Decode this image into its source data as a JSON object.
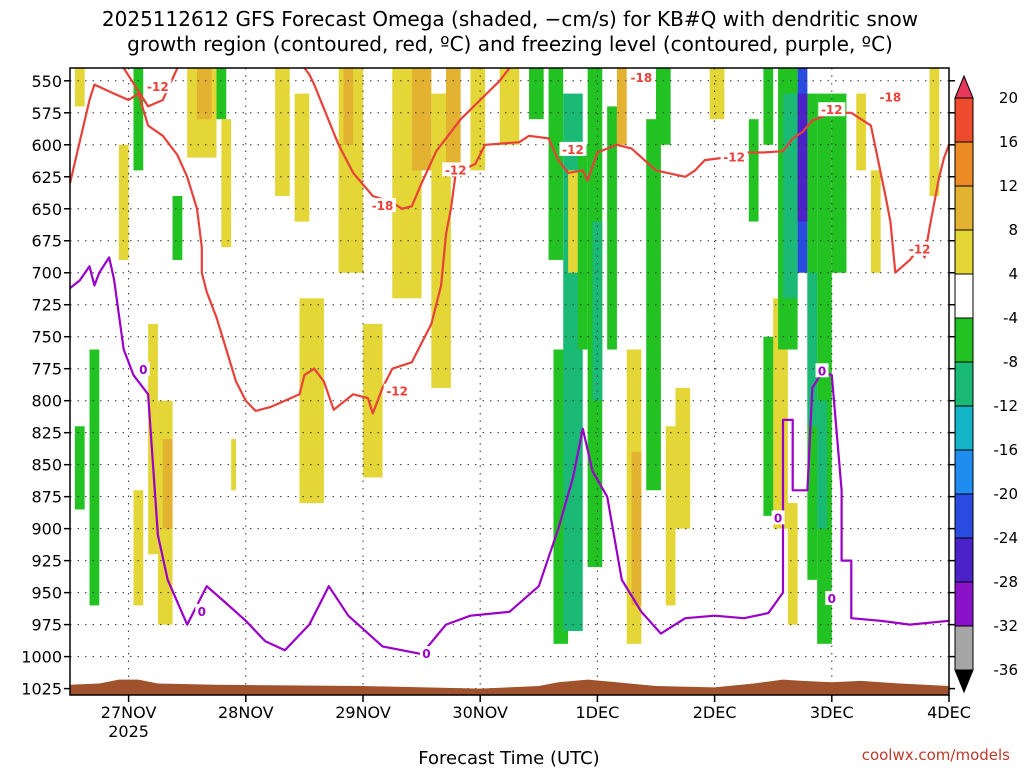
{
  "chart_data": {
    "type": "heatmap",
    "title_line1": "2025112612 GFS Forecast Omega (shaded, −cm/s) for KB#Q with dendritic snow",
    "title_line2": "growth region (contoured, red, ºC) and freezing level (contoured, purple, ºC)",
    "xlabel": "Forecast Time (UTC)",
    "credit": "coolwx.com/models",
    "x_ticks": [
      {
        "t": 12,
        "label": "27NOV",
        "sub": "2025"
      },
      {
        "t": 36,
        "label": "28NOV",
        "sub": ""
      },
      {
        "t": 60,
        "label": "29NOV",
        "sub": ""
      },
      {
        "t": 84,
        "label": "30NOV",
        "sub": ""
      },
      {
        "t": 108,
        "label": "1DEC",
        "sub": ""
      },
      {
        "t": 132,
        "label": "2DEC",
        "sub": ""
      },
      {
        "t": 156,
        "label": "3DEC",
        "sub": ""
      },
      {
        "t": 180,
        "label": "4DEC",
        "sub": ""
      }
    ],
    "y_ticks": [
      550,
      575,
      600,
      625,
      650,
      675,
      700,
      725,
      750,
      775,
      800,
      825,
      850,
      875,
      900,
      925,
      950,
      975,
      1000,
      1025
    ],
    "x_range_hours": [
      0,
      180
    ],
    "y_range_hpa": [
      540,
      1030
    ],
    "colorbar": {
      "levels": [
        20,
        16,
        12,
        8,
        4,
        -4,
        -8,
        -12,
        -16,
        -20,
        -24,
        -28,
        -32,
        -36
      ],
      "colors": [
        "#e8375a",
        "#ee4a2d",
        "#ec8a23",
        "#e2b230",
        "#e3d636",
        "#ffffff",
        "#21c221",
        "#1ab976",
        "#14b4c8",
        "#1f8cf0",
        "#2a4be0",
        "#4a22c8",
        "#8a12c8",
        "#a6a6a6",
        "#000000"
      ]
    },
    "series": [
      {
        "name": "freezing level 0°C",
        "color": "#9a00c8",
        "points": [
          [
            0,
            712
          ],
          [
            2,
            706
          ],
          [
            4,
            695
          ],
          [
            5,
            710
          ],
          [
            6,
            700
          ],
          [
            8,
            688
          ],
          [
            9,
            705
          ],
          [
            11,
            760
          ],
          [
            13,
            780
          ],
          [
            16,
            795
          ],
          [
            17,
            850
          ],
          [
            18,
            905
          ],
          [
            20,
            940
          ],
          [
            24,
            975
          ],
          [
            28,
            945
          ],
          [
            31,
            955
          ],
          [
            36,
            972
          ],
          [
            40,
            988
          ],
          [
            44,
            995
          ],
          [
            49,
            975
          ],
          [
            53,
            945
          ],
          [
            57,
            968
          ],
          [
            64,
            992
          ],
          [
            72,
            998
          ],
          [
            77,
            975
          ],
          [
            82,
            968
          ],
          [
            90,
            965
          ],
          [
            96,
            945
          ],
          [
            100,
            900
          ],
          [
            103,
            860
          ],
          [
            105,
            822
          ],
          [
            107,
            855
          ],
          [
            110,
            875
          ],
          [
            113,
            940
          ],
          [
            117,
            965
          ],
          [
            121,
            982
          ],
          [
            126,
            970
          ],
          [
            132,
            968
          ],
          [
            138,
            970
          ],
          [
            143,
            966
          ],
          [
            146,
            950
          ],
          [
            146,
            815
          ],
          [
            148,
            815
          ],
          [
            148,
            870
          ],
          [
            151,
            870
          ],
          [
            152,
            790
          ],
          [
            154,
            778
          ],
          [
            156,
            780
          ],
          [
            158,
            870
          ],
          [
            158,
            925
          ],
          [
            160,
            925
          ],
          [
            160,
            970
          ],
          [
            166,
            972
          ],
          [
            172,
            975
          ],
          [
            180,
            972
          ]
        ]
      },
      {
        "name": "-12°C lower contour",
        "color": "#e8413a",
        "points": [
          [
            0,
            630
          ],
          [
            4,
            565
          ],
          [
            5,
            553
          ],
          [
            9,
            560
          ],
          [
            12,
            565
          ],
          [
            14,
            560
          ],
          [
            16,
            585
          ],
          [
            19,
            593
          ],
          [
            22,
            608
          ],
          [
            24,
            625
          ],
          [
            26,
            650
          ],
          [
            27,
            680
          ],
          [
            27,
            700
          ],
          [
            28,
            715
          ],
          [
            30,
            735
          ],
          [
            32,
            760
          ],
          [
            34,
            785
          ],
          [
            36,
            800
          ],
          [
            38,
            808
          ],
          [
            41,
            805
          ],
          [
            44,
            800
          ],
          [
            47,
            795
          ],
          [
            48,
            780
          ],
          [
            50,
            775
          ],
          [
            52,
            785
          ],
          [
            54,
            807
          ],
          [
            58,
            795
          ],
          [
            61,
            798
          ],
          [
            62,
            810
          ],
          [
            64,
            790
          ],
          [
            66,
            775
          ],
          [
            70,
            770
          ],
          [
            74,
            740
          ],
          [
            76,
            710
          ],
          [
            77,
            670
          ],
          [
            78,
            650
          ],
          [
            79,
            622
          ],
          [
            83,
            615
          ],
          [
            85,
            600
          ],
          [
            92,
            598
          ],
          [
            94,
            593
          ],
          [
            98,
            595
          ],
          [
            100,
            612
          ],
          [
            102,
            622
          ],
          [
            105,
            620
          ],
          [
            106,
            628
          ],
          [
            108,
            606
          ],
          [
            112,
            600
          ],
          [
            115,
            603
          ],
          [
            120,
            620
          ],
          [
            126,
            625
          ],
          [
            128,
            620
          ],
          [
            130,
            612
          ],
          [
            134,
            610
          ],
          [
            138,
            606
          ],
          [
            142,
            606
          ],
          [
            146,
            605
          ],
          [
            148,
            595
          ],
          [
            150,
            590
          ],
          [
            152,
            581
          ],
          [
            156,
            575
          ],
          [
            160,
            575
          ],
          [
            164,
            585
          ],
          [
            167,
            640
          ],
          [
            168,
            660
          ],
          [
            169,
            700
          ],
          [
            172,
            690
          ],
          [
            174,
            680
          ],
          [
            175,
            688
          ],
          [
            176,
            665
          ],
          [
            178,
            625
          ],
          [
            179,
            610
          ],
          [
            180,
            600
          ]
        ]
      },
      {
        "name": "-12°C upper contour",
        "color": "#e8413a",
        "points": [
          [
            11,
            540
          ],
          [
            13,
            552
          ],
          [
            16,
            570
          ],
          [
            19,
            565
          ],
          [
            22,
            540
          ]
        ]
      },
      {
        "name": "-18°C contour",
        "color": "#e8413a",
        "points": [
          [
            48,
            540
          ],
          [
            49,
            545
          ],
          [
            50,
            553
          ],
          [
            55,
            600
          ],
          [
            58,
            622
          ],
          [
            62,
            640
          ],
          [
            66,
            645
          ],
          [
            68,
            650
          ],
          [
            70,
            648
          ],
          [
            72,
            630
          ],
          [
            75,
            605
          ],
          [
            80,
            580
          ],
          [
            84,
            565
          ],
          [
            88,
            550
          ],
          [
            90,
            540
          ]
        ]
      }
    ],
    "contour_labels": [
      {
        "text": "-12",
        "t": 18,
        "p": 555,
        "class": "red"
      },
      {
        "text": "-18",
        "t": 64,
        "p": 648,
        "class": "red"
      },
      {
        "text": "-12",
        "t": 67,
        "p": 793,
        "class": "red"
      },
      {
        "text": "-12",
        "t": 79,
        "p": 620,
        "class": "red"
      },
      {
        "text": "-12",
        "t": 103,
        "p": 604,
        "class": "red"
      },
      {
        "text": "-18",
        "t": 117,
        "p": 548,
        "class": "red"
      },
      {
        "text": "-12",
        "t": 136,
        "p": 610,
        "class": "red"
      },
      {
        "text": "-12",
        "t": 156,
        "p": 573,
        "class": "red"
      },
      {
        "text": "-18",
        "t": 168,
        "p": 563,
        "class": "red"
      },
      {
        "text": "-12",
        "t": 174,
        "p": 682,
        "class": "red"
      },
      {
        "text": "0",
        "t": 15,
        "p": 776,
        "class": "purple"
      },
      {
        "text": "0",
        "t": 27,
        "p": 965,
        "class": "purple"
      },
      {
        "text": "0",
        "t": 73,
        "p": 998,
        "class": "purple"
      },
      {
        "text": "0",
        "t": 145,
        "p": 892,
        "class": "purple"
      },
      {
        "text": "0",
        "t": 154,
        "p": 777,
        "class": "purple"
      },
      {
        "text": "0",
        "t": 156,
        "p": 955,
        "class": "purple"
      }
    ],
    "omega_regions": [
      {
        "t0": 1,
        "t1": 3,
        "p0": 540,
        "p1": 570,
        "level": 4
      },
      {
        "t0": 1,
        "t1": 3,
        "p0": 820,
        "p1": 885,
        "level": -8
      },
      {
        "t0": 4,
        "t1": 6,
        "p0": 760,
        "p1": 960,
        "level": -8
      },
      {
        "t0": 10,
        "t1": 12,
        "p0": 600,
        "p1": 690,
        "level": 4
      },
      {
        "t0": 13,
        "t1": 15,
        "p0": 540,
        "p1": 620,
        "level": -8
      },
      {
        "t0": 13,
        "t1": 15,
        "p0": 870,
        "p1": 960,
        "level": 4
      },
      {
        "t0": 16,
        "t1": 18,
        "p0": 740,
        "p1": 920,
        "level": 4
      },
      {
        "t0": 18,
        "t1": 21,
        "p0": 800,
        "p1": 975,
        "level": 4
      },
      {
        "t0": 19,
        "t1": 21,
        "p0": 830,
        "p1": 900,
        "level": 8
      },
      {
        "t0": 21,
        "t1": 23,
        "p0": 640,
        "p1": 690,
        "level": -8
      },
      {
        "t0": 24,
        "t1": 30,
        "p0": 540,
        "p1": 610,
        "level": 4
      },
      {
        "t0": 26,
        "t1": 29,
        "p0": 540,
        "p1": 580,
        "level": 8
      },
      {
        "t0": 30,
        "t1": 32,
        "p0": 540,
        "p1": 580,
        "level": -8
      },
      {
        "t0": 31,
        "t1": 33,
        "p0": 580,
        "p1": 680,
        "level": 4
      },
      {
        "t0": 33,
        "t1": 34,
        "p0": 830,
        "p1": 870,
        "level": 4
      },
      {
        "t0": 42,
        "t1": 45,
        "p0": 540,
        "p1": 640,
        "level": 4
      },
      {
        "t0": 46,
        "t1": 49,
        "p0": 560,
        "p1": 660,
        "level": 4
      },
      {
        "t0": 47,
        "t1": 52,
        "p0": 720,
        "p1": 880,
        "level": 4
      },
      {
        "t0": 55,
        "t1": 60,
        "p0": 540,
        "p1": 700,
        "level": 4
      },
      {
        "t0": 56,
        "t1": 58,
        "p0": 540,
        "p1": 600,
        "level": 8
      },
      {
        "t0": 60,
        "t1": 64,
        "p0": 740,
        "p1": 860,
        "level": 4
      },
      {
        "t0": 66,
        "t1": 72,
        "p0": 540,
        "p1": 720,
        "level": 4
      },
      {
        "t0": 70,
        "t1": 74,
        "p0": 540,
        "p1": 620,
        "level": 8
      },
      {
        "t0": 74,
        "t1": 78,
        "p0": 560,
        "p1": 790,
        "level": 4
      },
      {
        "t0": 77,
        "t1": 80,
        "p0": 540,
        "p1": 620,
        "level": 8
      },
      {
        "t0": 82,
        "t1": 85,
        "p0": 540,
        "p1": 620,
        "level": 4
      },
      {
        "t0": 88,
        "t1": 92,
        "p0": 540,
        "p1": 600,
        "level": 4
      },
      {
        "t0": 94,
        "t1": 97,
        "p0": 540,
        "p1": 580,
        "level": -8
      },
      {
        "t0": 98,
        "t1": 101,
        "p0": 540,
        "p1": 690,
        "level": -8
      },
      {
        "t0": 99,
        "t1": 102,
        "p0": 760,
        "p1": 990,
        "level": -8
      },
      {
        "t0": 101,
        "t1": 105,
        "p0": 560,
        "p1": 980,
        "level": -12
      },
      {
        "t0": 102,
        "t1": 104,
        "p0": 620,
        "p1": 700,
        "level": 4
      },
      {
        "t0": 104,
        "t1": 106,
        "p0": 600,
        "p1": 760,
        "level": -8
      },
      {
        "t0": 106,
        "t1": 109,
        "p0": 540,
        "p1": 930,
        "level": -8
      },
      {
        "t0": 107,
        "t1": 109,
        "p0": 660,
        "p1": 800,
        "level": -12
      },
      {
        "t0": 110,
        "t1": 112,
        "p0": 570,
        "p1": 760,
        "level": -8
      },
      {
        "t0": 112,
        "t1": 114,
        "p0": 540,
        "p1": 600,
        "level": 8
      },
      {
        "t0": 114,
        "t1": 117,
        "p0": 760,
        "p1": 990,
        "level": 4
      },
      {
        "t0": 115,
        "t1": 117,
        "p0": 840,
        "p1": 960,
        "level": 8
      },
      {
        "t0": 118,
        "t1": 121,
        "p0": 580,
        "p1": 870,
        "level": -8
      },
      {
        "t0": 120,
        "t1": 123,
        "p0": 540,
        "p1": 600,
        "level": -8
      },
      {
        "t0": 122,
        "t1": 124,
        "p0": 820,
        "p1": 960,
        "level": 4
      },
      {
        "t0": 124,
        "t1": 127,
        "p0": 790,
        "p1": 900,
        "level": 4
      },
      {
        "t0": 131,
        "t1": 134,
        "p0": 540,
        "p1": 580,
        "level": 4
      },
      {
        "t0": 139,
        "t1": 141,
        "p0": 580,
        "p1": 660,
        "level": -8
      },
      {
        "t0": 142,
        "t1": 144,
        "p0": 540,
        "p1": 600,
        "level": -8
      },
      {
        "t0": 142,
        "t1": 145,
        "p0": 750,
        "p1": 890,
        "level": -8
      },
      {
        "t0": 144,
        "t1": 147,
        "p0": 720,
        "p1": 900,
        "level": 4
      },
      {
        "t0": 145,
        "t1": 149,
        "p0": 540,
        "p1": 760,
        "level": -8
      },
      {
        "t0": 146,
        "t1": 149,
        "p0": 560,
        "p1": 720,
        "level": -12
      },
      {
        "t0": 147,
        "t1": 149,
        "p0": 880,
        "p1": 975,
        "level": 4
      },
      {
        "t0": 149,
        "t1": 151,
        "p0": 540,
        "p1": 700,
        "level": -24
      },
      {
        "t0": 149,
        "t1": 151,
        "p0": 560,
        "p1": 660,
        "level": -28
      },
      {
        "t0": 151,
        "t1": 153,
        "p0": 560,
        "p1": 940,
        "level": -8
      },
      {
        "t0": 151,
        "t1": 153,
        "p0": 700,
        "p1": 820,
        "level": -12
      },
      {
        "t0": 153,
        "t1": 156,
        "p0": 560,
        "p1": 990,
        "level": -8
      },
      {
        "t0": 153,
        "t1": 155,
        "p0": 800,
        "p1": 900,
        "level": -12
      },
      {
        "t0": 156,
        "t1": 159,
        "p0": 560,
        "p1": 700,
        "level": -8
      },
      {
        "t0": 161,
        "t1": 163,
        "p0": 560,
        "p1": 620,
        "level": 4
      },
      {
        "t0": 164,
        "t1": 166,
        "p0": 620,
        "p1": 700,
        "level": 4
      },
      {
        "t0": 176,
        "t1": 178,
        "p0": 540,
        "p1": 640,
        "level": 4
      }
    ]
  }
}
